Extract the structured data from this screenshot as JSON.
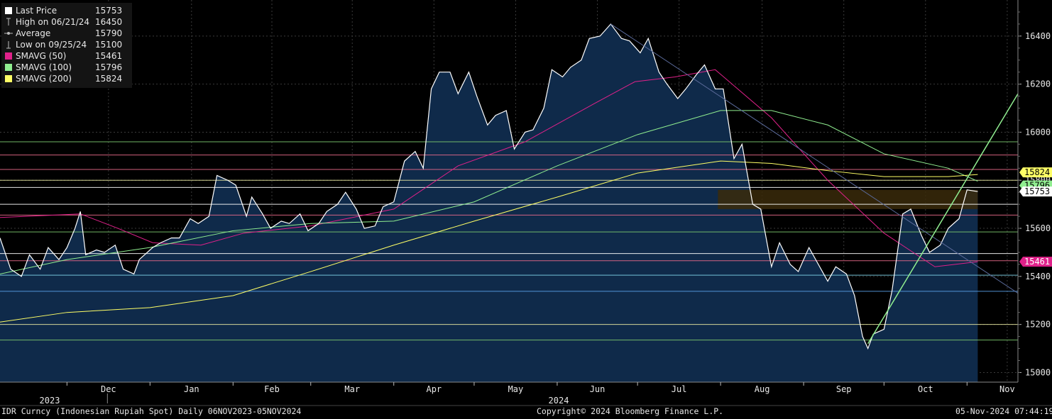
{
  "legend": {
    "items": [
      {
        "label": "Last Price",
        "value": "15753",
        "icon": "white-square",
        "color": "#ffffff"
      },
      {
        "label": "High on 06/21/24",
        "value": "16450",
        "icon": "high-marker",
        "color": "#bbbbbb"
      },
      {
        "label": "Average",
        "value": "15790",
        "icon": "average-marker",
        "color": "#bbbbbb"
      },
      {
        "label": "Low on 09/25/24",
        "value": "15100",
        "icon": "low-marker",
        "color": "#bbbbbb"
      },
      {
        "label": "SMAVG (50)",
        "value": "15461",
        "icon": "magenta-square",
        "color": "#e0218a"
      },
      {
        "label": "SMAVG (100)",
        "value": "15796",
        "icon": "green-square",
        "color": "#90ee90"
      },
      {
        "label": "SMAVG (200)",
        "value": "15824",
        "icon": "yellow-square",
        "color": "#ffff66"
      }
    ]
  },
  "footer": {
    "left": "IDR Curncy (Indonesian Rupiah Spot)  Daily 06NOV2023-05NOV2024",
    "center": "Copyright© 2024 Bloomberg Finance L.P.",
    "right": "05-Nov-2024 07:44:19"
  },
  "chart_data": {
    "type": "line",
    "ylim": [
      14960,
      16550
    ],
    "yticks": [
      "15000",
      "15200",
      "15400",
      "15600",
      "15800",
      "16000",
      "16200",
      "16400"
    ],
    "months": [
      "Dec",
      "Jan",
      "Feb",
      "Mar",
      "Apr",
      "May",
      "Jun",
      "Jul",
      "Aug",
      "Sep",
      "Oct",
      "Nov"
    ],
    "years": [
      "2023",
      "2024"
    ],
    "x_range": [
      "2023-11-06",
      "2024-11-20"
    ],
    "grid": true,
    "axis_tags": [
      {
        "value": 15824,
        "text": "15824",
        "bg": "#ffff66",
        "fg": "#000000"
      },
      {
        "value": 15796,
        "text": "15796",
        "bg": "#90ee90",
        "fg": "#000000"
      },
      {
        "value": 15753,
        "text": "15753",
        "bg": "#ffffff",
        "fg": "#000000"
      },
      {
        "value": 15461,
        "text": "15461",
        "bg": "#e0218a",
        "fg": "#ffffff"
      }
    ],
    "horizontal_levels": [
      {
        "value": 15960,
        "color": "#7cc86e"
      },
      {
        "value": 15905,
        "color": "#e86a8a"
      },
      {
        "value": 15845,
        "color": "#e86a8a"
      },
      {
        "value": 15800,
        "color": "#e8e8a0"
      },
      {
        "value": 15770,
        "color": "#ffffff"
      },
      {
        "value": 15700,
        "color": "#ffffff"
      },
      {
        "value": 15655,
        "color": "#e86a8a"
      },
      {
        "value": 15585,
        "color": "#7cc86e"
      },
      {
        "value": 15495,
        "color": "#ffffff"
      },
      {
        "value": 15465,
        "color": "#e86a8a"
      },
      {
        "value": 15405,
        "color": "#7fd3e8"
      },
      {
        "value": 15338,
        "color": "#5aa0e8"
      },
      {
        "value": 15200,
        "color": "#e8e8a0"
      },
      {
        "value": 15135,
        "color": "#7cc86e"
      }
    ],
    "zone": {
      "from": "2024-07-31",
      "to": "2024-11-05",
      "y1": 15680,
      "y2": 15760,
      "color": "#3a2a0a"
    },
    "trendlines": [
      {
        "from": [
          "2024-06-21",
          16450
        ],
        "to": [
          "2024-11-20",
          15330
        ],
        "color": "#5a6a9a"
      },
      {
        "from": [
          "2024-09-25",
          15120
        ],
        "to": [
          "2024-11-20",
          16160
        ],
        "color": "#90ee90"
      }
    ],
    "series": [
      {
        "name": "Last Price",
        "color": "#ffffff",
        "fill": "#0f2a4a",
        "points": [
          [
            "2023-11-06",
            15560
          ],
          [
            "2023-11-10",
            15430
          ],
          [
            "2023-11-14",
            15400
          ],
          [
            "2023-11-17",
            15490
          ],
          [
            "2023-11-21",
            15430
          ],
          [
            "2023-11-24",
            15520
          ],
          [
            "2023-11-28",
            15470
          ],
          [
            "2023-12-01",
            15520
          ],
          [
            "2023-12-04",
            15600
          ],
          [
            "2023-12-06",
            15670
          ],
          [
            "2023-12-08",
            15490
          ],
          [
            "2023-12-12",
            15510
          ],
          [
            "2023-12-15",
            15500
          ],
          [
            "2023-12-19",
            15530
          ],
          [
            "2023-12-22",
            15430
          ],
          [
            "2023-12-26",
            15410
          ],
          [
            "2023-12-28",
            15470
          ],
          [
            "2024-01-02",
            15520
          ],
          [
            "2024-01-05",
            15540
          ],
          [
            "2024-01-09",
            15560
          ],
          [
            "2024-01-12",
            15560
          ],
          [
            "2024-01-16",
            15640
          ],
          [
            "2024-01-19",
            15620
          ],
          [
            "2024-01-23",
            15650
          ],
          [
            "2024-01-26",
            15820
          ],
          [
            "2024-01-30",
            15800
          ],
          [
            "2024-02-02",
            15780
          ],
          [
            "2024-02-06",
            15650
          ],
          [
            "2024-02-08",
            15730
          ],
          [
            "2024-02-12",
            15660
          ],
          [
            "2024-02-15",
            15600
          ],
          [
            "2024-02-19",
            15630
          ],
          [
            "2024-02-22",
            15620
          ],
          [
            "2024-02-26",
            15660
          ],
          [
            "2024-02-29",
            15590
          ],
          [
            "2024-03-04",
            15620
          ],
          [
            "2024-03-07",
            15670
          ],
          [
            "2024-03-11",
            15700
          ],
          [
            "2024-03-14",
            15750
          ],
          [
            "2024-03-18",
            15680
          ],
          [
            "2024-03-21",
            15600
          ],
          [
            "2024-03-25",
            15610
          ],
          [
            "2024-03-28",
            15690
          ],
          [
            "2024-04-01",
            15710
          ],
          [
            "2024-04-05",
            15880
          ],
          [
            "2024-04-09",
            15920
          ],
          [
            "2024-04-12",
            15850
          ],
          [
            "2024-04-15",
            16180
          ],
          [
            "2024-04-18",
            16250
          ],
          [
            "2024-04-22",
            16250
          ],
          [
            "2024-04-25",
            16160
          ],
          [
            "2024-04-29",
            16250
          ],
          [
            "2024-05-02",
            16150
          ],
          [
            "2024-05-06",
            16030
          ],
          [
            "2024-05-09",
            16070
          ],
          [
            "2024-05-13",
            16090
          ],
          [
            "2024-05-16",
            15930
          ],
          [
            "2024-05-20",
            16000
          ],
          [
            "2024-05-23",
            16010
          ],
          [
            "2024-05-27",
            16100
          ],
          [
            "2024-05-30",
            16260
          ],
          [
            "2024-06-03",
            16230
          ],
          [
            "2024-06-06",
            16270
          ],
          [
            "2024-06-10",
            16300
          ],
          [
            "2024-06-13",
            16390
          ],
          [
            "2024-06-17",
            16400
          ],
          [
            "2024-06-21",
            16450
          ],
          [
            "2024-06-25",
            16390
          ],
          [
            "2024-06-28",
            16380
          ],
          [
            "2024-07-02",
            16330
          ],
          [
            "2024-07-05",
            16390
          ],
          [
            "2024-07-09",
            16250
          ],
          [
            "2024-07-12",
            16200
          ],
          [
            "2024-07-16",
            16140
          ],
          [
            "2024-07-19",
            16180
          ],
          [
            "2024-07-23",
            16240
          ],
          [
            "2024-07-26",
            16280
          ],
          [
            "2024-07-30",
            16180
          ],
          [
            "2024-08-02",
            16180
          ],
          [
            "2024-08-06",
            15890
          ],
          [
            "2024-08-09",
            15950
          ],
          [
            "2024-08-13",
            15700
          ],
          [
            "2024-08-16",
            15680
          ],
          [
            "2024-08-20",
            15440
          ],
          [
            "2024-08-23",
            15540
          ],
          [
            "2024-08-27",
            15450
          ],
          [
            "2024-08-30",
            15420
          ],
          [
            "2024-09-03",
            15520
          ],
          [
            "2024-09-06",
            15460
          ],
          [
            "2024-09-10",
            15380
          ],
          [
            "2024-09-13",
            15440
          ],
          [
            "2024-09-17",
            15410
          ],
          [
            "2024-09-20",
            15320
          ],
          [
            "2024-09-23",
            15150
          ],
          [
            "2024-09-25",
            15100
          ],
          [
            "2024-09-27",
            15160
          ],
          [
            "2024-10-01",
            15180
          ],
          [
            "2024-10-04",
            15340
          ],
          [
            "2024-10-08",
            15660
          ],
          [
            "2024-10-11",
            15680
          ],
          [
            "2024-10-15",
            15570
          ],
          [
            "2024-10-18",
            15500
          ],
          [
            "2024-10-22",
            15530
          ],
          [
            "2024-10-25",
            15600
          ],
          [
            "2024-10-29",
            15640
          ],
          [
            "2024-11-01",
            15760
          ],
          [
            "2024-11-05",
            15753
          ]
        ]
      },
      {
        "name": "SMAVG (50)",
        "color": "#e0218a",
        "points": [
          [
            "2023-11-06",
            15645
          ],
          [
            "2023-12-06",
            15660
          ],
          [
            "2023-12-20",
            15600
          ],
          [
            "2024-01-02",
            15540
          ],
          [
            "2024-01-20",
            15530
          ],
          [
            "2024-02-05",
            15580
          ],
          [
            "2024-03-01",
            15610
          ],
          [
            "2024-04-01",
            15680
          ],
          [
            "2024-04-25",
            15860
          ],
          [
            "2024-05-20",
            15960
          ],
          [
            "2024-06-15",
            16120
          ],
          [
            "2024-06-30",
            16210
          ],
          [
            "2024-07-15",
            16230
          ],
          [
            "2024-07-30",
            16260
          ],
          [
            "2024-08-20",
            16060
          ],
          [
            "2024-09-10",
            15800
          ],
          [
            "2024-10-01",
            15580
          ],
          [
            "2024-10-20",
            15440
          ],
          [
            "2024-11-05",
            15461
          ]
        ]
      },
      {
        "name": "SMAVG (100)",
        "color": "#90ee90",
        "points": [
          [
            "2023-11-06",
            15410
          ],
          [
            "2023-12-01",
            15470
          ],
          [
            "2024-01-01",
            15520
          ],
          [
            "2024-02-01",
            15590
          ],
          [
            "2024-03-01",
            15620
          ],
          [
            "2024-04-01",
            15630
          ],
          [
            "2024-05-01",
            15710
          ],
          [
            "2024-06-01",
            15860
          ],
          [
            "2024-07-01",
            15990
          ],
          [
            "2024-08-01",
            16090
          ],
          [
            "2024-08-20",
            16090
          ],
          [
            "2024-09-10",
            16030
          ],
          [
            "2024-10-01",
            15910
          ],
          [
            "2024-10-25",
            15850
          ],
          [
            "2024-11-05",
            15796
          ]
        ]
      },
      {
        "name": "SMAVG (200)",
        "color": "#ffff66",
        "points": [
          [
            "2023-11-06",
            15210
          ],
          [
            "2023-12-01",
            15250
          ],
          [
            "2024-01-01",
            15270
          ],
          [
            "2024-02-01",
            15320
          ],
          [
            "2024-03-01",
            15420
          ],
          [
            "2024-04-01",
            15530
          ],
          [
            "2024-05-01",
            15630
          ],
          [
            "2024-06-01",
            15730
          ],
          [
            "2024-07-01",
            15830
          ],
          [
            "2024-08-01",
            15880
          ],
          [
            "2024-08-20",
            15870
          ],
          [
            "2024-09-10",
            15840
          ],
          [
            "2024-10-01",
            15815
          ],
          [
            "2024-10-25",
            15815
          ],
          [
            "2024-11-05",
            15824
          ]
        ]
      }
    ]
  }
}
